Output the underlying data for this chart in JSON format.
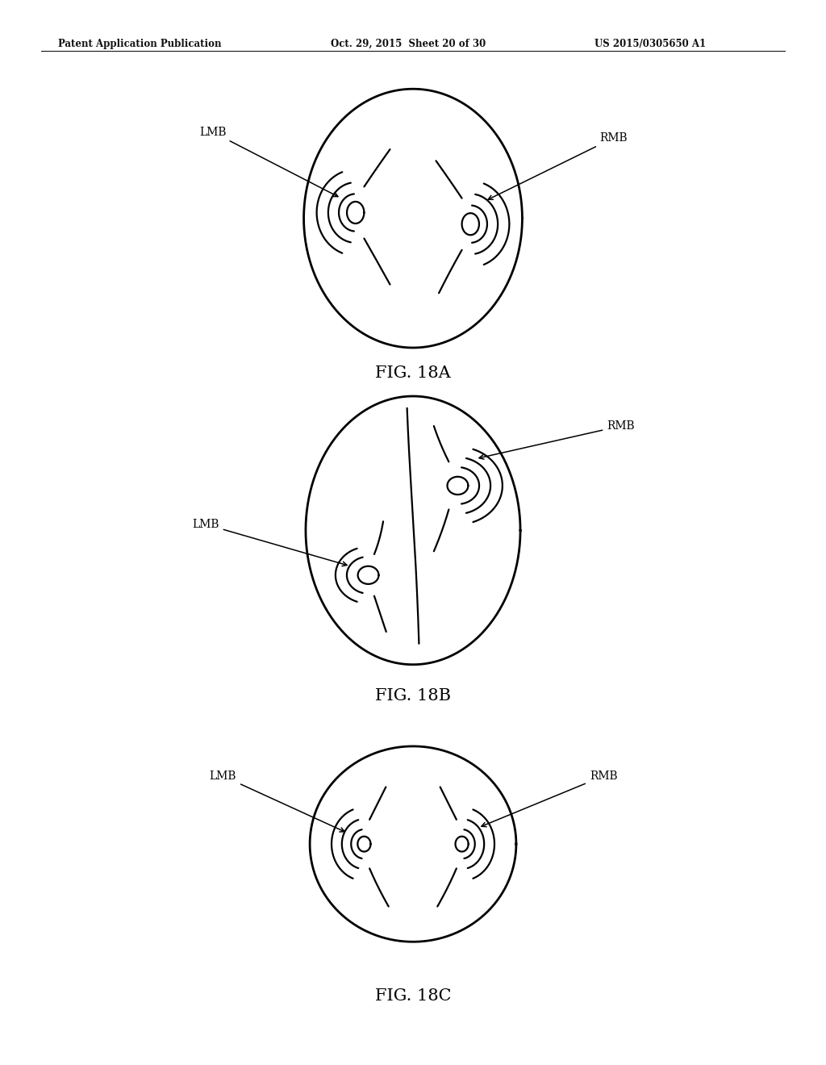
{
  "header_left": "Patent Application Publication",
  "header_mid": "Oct. 29, 2015  Sheet 20 of 30",
  "header_right": "US 2015/0305650 A1",
  "fig_labels": [
    "FIG. 18A",
    "FIG. 18B",
    "FIG. 18C"
  ],
  "background_color": "#ffffff",
  "line_color": "#000000"
}
